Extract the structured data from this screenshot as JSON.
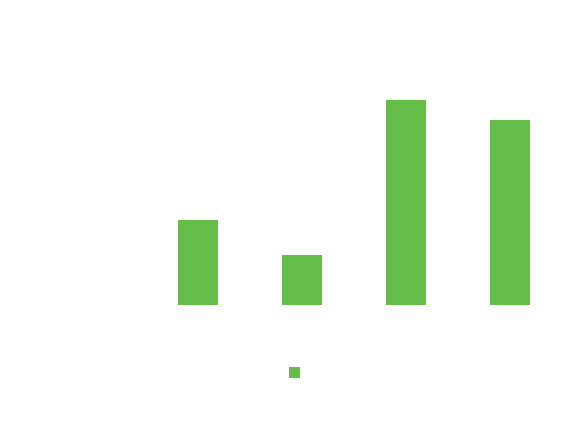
{
  "chart_data": {
    "type": "bar",
    "categories": [
      "",
      "",
      "",
      "",
      ""
    ],
    "series": [
      {
        "values": [
          0,
          85,
          50,
          205,
          185
        ],
        "color": "#65bd4a"
      }
    ],
    "title": "",
    "xlabel": "",
    "ylabel": "",
    "ylim": [
      0,
      205
    ],
    "grid": false,
    "legend": "bottom"
  }
}
